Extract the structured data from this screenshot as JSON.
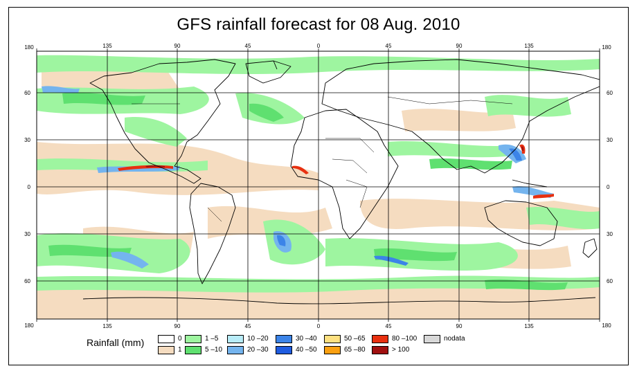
{
  "title": "GFS rainfall forecast for 08 Aug. 2010",
  "lon_ticks": [
    "180",
    "135",
    "90",
    "45",
    "0",
    "45",
    "90",
    "135",
    "180"
  ],
  "lat_ticks": [
    "60",
    "30",
    "0",
    "30",
    "60"
  ],
  "legend": {
    "title": "Rainfall (mm)",
    "items": [
      {
        "label": "0",
        "color": "#ffffff"
      },
      {
        "label": "1",
        "color": "#f5dcc0"
      },
      {
        "label": "1 –5",
        "color": "#9ef5a0"
      },
      {
        "label": "5 –10",
        "color": "#5fe070"
      },
      {
        "label": "10 –20",
        "color": "#b8ecf8"
      },
      {
        "label": "20 –30",
        "color": "#74b4ee"
      },
      {
        "label": "30 –40",
        "color": "#3c84e8"
      },
      {
        "label": "40 –50",
        "color": "#1f5ce0"
      },
      {
        "label": "50 –65",
        "color": "#fde080"
      },
      {
        "label": "65 –80",
        "color": "#fba010"
      },
      {
        "label": "80 –100",
        "color": "#e83010"
      },
      {
        "label": "> 100",
        "color": "#a01010"
      },
      {
        "label": "nodata",
        "color": "#d8d8d8"
      }
    ]
  }
}
